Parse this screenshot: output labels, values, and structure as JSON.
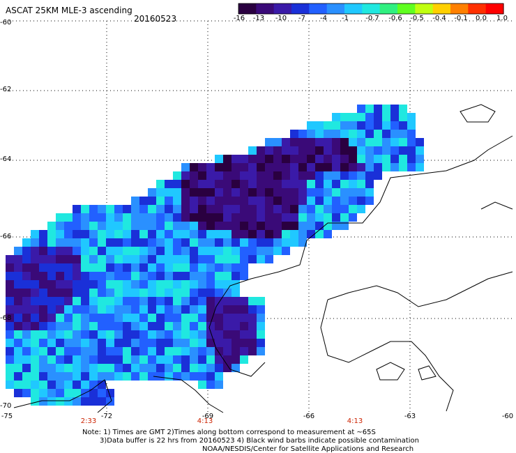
{
  "header": {
    "title": "ASCAT 25KM MLE-3 ascending",
    "date": "20160523"
  },
  "colorbar": {
    "labels": [
      "-16",
      "-13",
      "-10",
      "-7",
      "-4",
      "-1",
      "-0.7",
      "-0.6",
      "-0.5",
      "-0.4",
      "-0.1",
      "0.0",
      "1.0"
    ],
    "colors": [
      "#2a0040",
      "#3a0a78",
      "#3a1aa8",
      "#1a30d8",
      "#2260ff",
      "#2a90ff",
      "#20c8ff",
      "#20e8e0",
      "#30f080",
      "#60ff20",
      "#c0ff10",
      "#ffd000",
      "#ff8000",
      "#ff3000",
      "#ff0000"
    ]
  },
  "axes": {
    "lat_labels": [
      "-60",
      "-62",
      "-64",
      "-66",
      "-68",
      "-70"
    ],
    "lon_labels": [
      "-75",
      "-72",
      "-69",
      "-66",
      "-63",
      "-60"
    ]
  },
  "time_labels": [
    "2:33",
    "4:13",
    "4:13"
  ],
  "notes": {
    "line1": "Note: 1) Times are GMT 2)Times along bottom correspond to measurement at ~65S",
    "line2": "3)Data buffer is 22 hrs from 20160523 4) Black wind barbs indicate possible contamination",
    "line3": "NOAA/NESDIS/Center for Satellite Applications and Research"
  }
}
